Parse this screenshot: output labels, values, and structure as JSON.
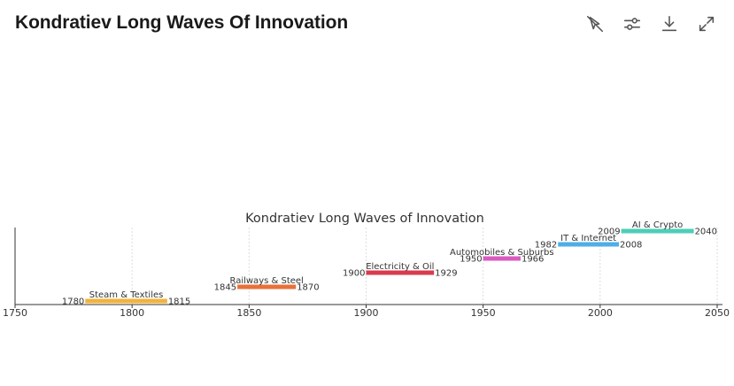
{
  "header": {
    "title": "Kondratiev Long Waves Of Innovation"
  },
  "toolbar": {
    "icons": [
      "chart-pointer-icon",
      "sliders-icon",
      "download-icon",
      "expand-icon"
    ]
  },
  "chart_data": {
    "type": "timeline",
    "title": "Kondratiev Long Waves of Innovation",
    "xlabel": "",
    "ylabel": "",
    "xlim": [
      1750,
      2050
    ],
    "xticks": [
      1750,
      1800,
      1850,
      1900,
      1950,
      2000,
      2050
    ],
    "grid": true,
    "series": [
      {
        "name": "Steam & Textiles",
        "start": 1780,
        "end": 1815,
        "color": "#f2b33d"
      },
      {
        "name": "Railways & Steel",
        "start": 1845,
        "end": 1870,
        "color": "#e8703a"
      },
      {
        "name": "Electricity & Oil",
        "start": 1900,
        "end": 1929,
        "color": "#d83a4e"
      },
      {
        "name": "Automobiles & Suburbs",
        "start": 1950,
        "end": 1966,
        "color": "#d95bbf"
      },
      {
        "name": "IT & Internet",
        "start": 1982,
        "end": 2008,
        "color": "#4eaee8"
      },
      {
        "name": "AI & Crypto",
        "start": 2009,
        "end": 2040,
        "color": "#4ecdb8"
      }
    ]
  }
}
